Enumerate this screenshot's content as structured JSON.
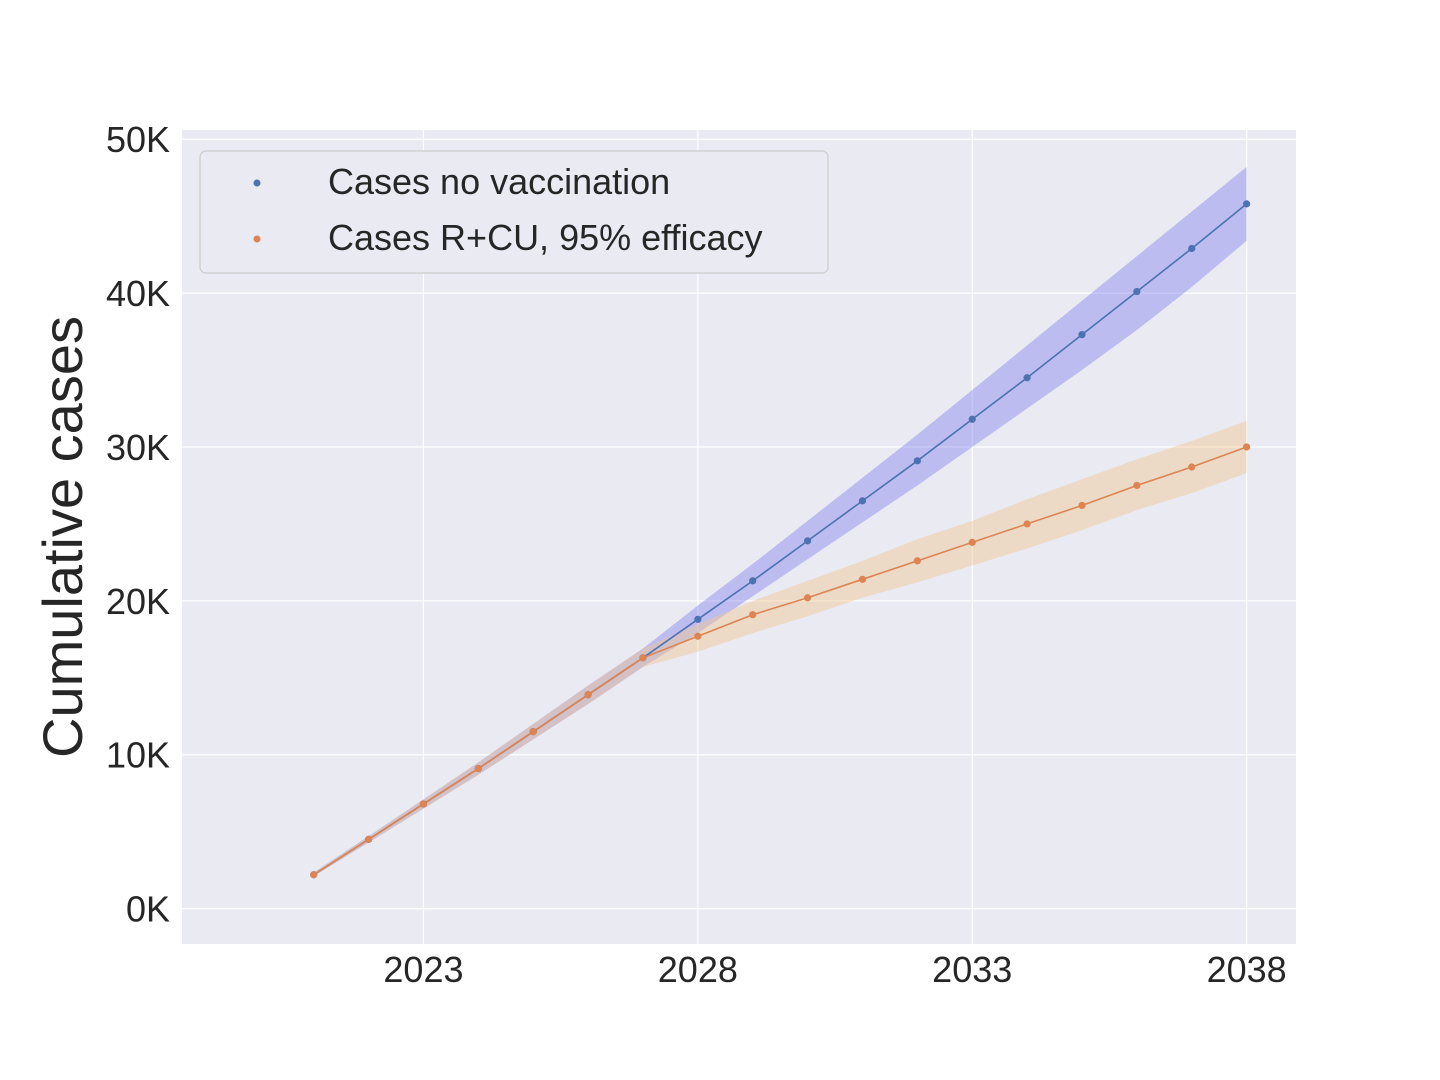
{
  "chart_data": {
    "type": "line",
    "title": "",
    "xlabel": "",
    "ylabel": "Cumulative cases",
    "x": [
      2021,
      2022,
      2023,
      2024,
      2025,
      2026,
      2027,
      2028,
      2029,
      2030,
      2031,
      2032,
      2033,
      2034,
      2035,
      2036,
      2037,
      2038
    ],
    "xlim": [
      2018.6,
      2038.9
    ],
    "ylim": [
      -2300,
      50600
    ],
    "xticks": [
      2023,
      2028,
      2033,
      2038
    ],
    "xtick_labels": [
      "2023",
      "2028",
      "2033",
      "2038"
    ],
    "yticks": [
      0,
      10000,
      20000,
      30000,
      40000,
      50000
    ],
    "ytick_labels": [
      "0K",
      "10K",
      "20K",
      "30K",
      "40K",
      "50K"
    ],
    "grid": true,
    "legend_position": "top-left",
    "background_color": "#eaeaf2",
    "series": [
      {
        "name": "Cases no vaccination",
        "color": "#4c72b0",
        "band_color": "#8585f0",
        "values": [
          2200,
          4500,
          6800,
          9100,
          11500,
          13900,
          16300,
          18800,
          21300,
          23900,
          26500,
          29100,
          31800,
          34500,
          37300,
          40100,
          42900,
          45800
        ],
        "lower": [
          2100,
          4300,
          6500,
          8700,
          11000,
          13300,
          15700,
          17900,
          20300,
          22700,
          25100,
          27500,
          30000,
          32500,
          35000,
          37600,
          40400,
          43400
        ],
        "upper": [
          2350,
          4700,
          7100,
          9500,
          12000,
          14500,
          16900,
          19700,
          22400,
          25200,
          28000,
          30800,
          33700,
          36600,
          39500,
          42400,
          45300,
          48200
        ]
      },
      {
        "name": "Cases R+CU, 95% efficacy",
        "color": "#dd8452",
        "band_color": "#f0c890",
        "values": [
          2200,
          4500,
          6800,
          9100,
          11500,
          13900,
          16300,
          17700,
          19100,
          20200,
          21400,
          22600,
          23800,
          25000,
          26200,
          27500,
          28700,
          30000
        ],
        "lower": [
          2100,
          4300,
          6500,
          8700,
          11000,
          13300,
          15700,
          16700,
          17900,
          19000,
          20200,
          21200,
          22300,
          23400,
          24600,
          25900,
          27000,
          28300
        ],
        "upper": [
          2350,
          4700,
          7100,
          9500,
          12000,
          14500,
          16900,
          18500,
          20000,
          21300,
          22600,
          24000,
          25200,
          26600,
          27900,
          29200,
          30400,
          31700
        ]
      }
    ]
  }
}
